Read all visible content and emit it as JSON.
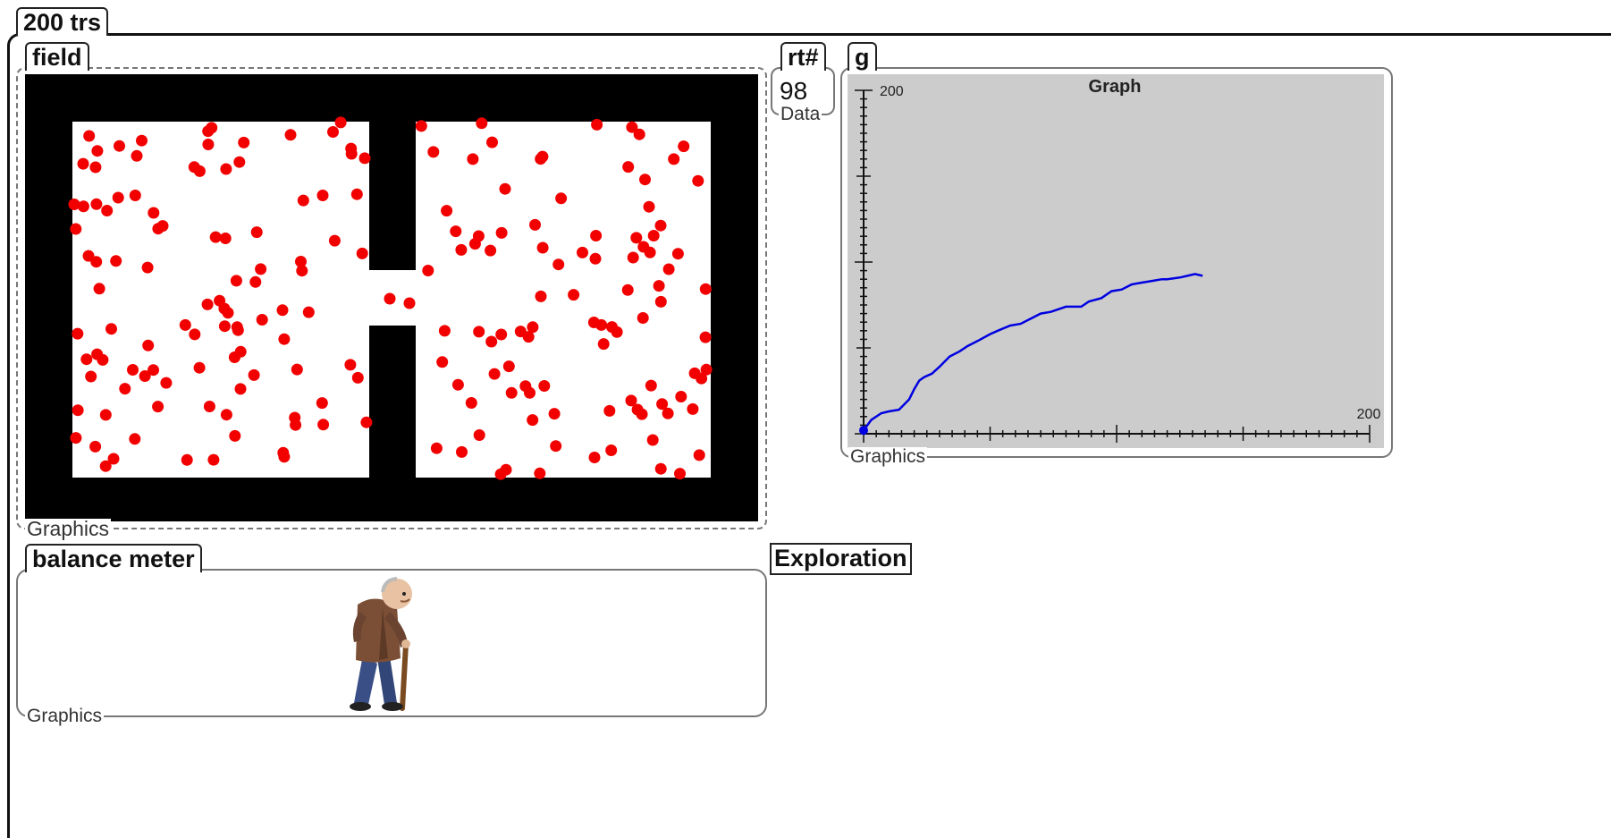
{
  "outer": {
    "title": "200 trs"
  },
  "field": {
    "title": "field",
    "caption": "Graphics",
    "dot_color": "#f20000",
    "wall_color": "#000000"
  },
  "data_box": {
    "title": "rt#",
    "value": "98",
    "caption": "Data"
  },
  "graph": {
    "title": "g",
    "caption": "Graphics",
    "chart_data": {
      "type": "line",
      "title": "Graph",
      "xlabel": "",
      "ylabel": "",
      "xlim": [
        0,
        200
      ],
      "ylim": [
        0,
        200
      ],
      "x_max_label": "200",
      "y_max_label": "200",
      "grid": false,
      "line_color": "#0000e0",
      "background": "#cccccc",
      "series": [
        {
          "x": [
            0,
            3,
            7,
            10,
            14,
            18,
            20,
            22,
            24,
            27,
            30,
            34,
            38,
            41,
            45,
            50,
            53,
            58,
            62,
            66,
            70,
            74,
            80,
            86,
            89,
            94,
            98,
            102,
            106,
            110,
            114,
            118,
            120,
            125,
            128,
            131,
            134
          ],
          "y": [
            2,
            8,
            12,
            13,
            14,
            20,
            26,
            31,
            33,
            35,
            39,
            45,
            48,
            51,
            54,
            58,
            60,
            63,
            64,
            67,
            70,
            71,
            74,
            74,
            77,
            79,
            83,
            84,
            87,
            88,
            89,
            90,
            90,
            91,
            92,
            93,
            92
          ]
        }
      ]
    }
  },
  "balance": {
    "title": "balance meter",
    "caption": "Graphics"
  },
  "exploration": {
    "label": "Exploration"
  }
}
